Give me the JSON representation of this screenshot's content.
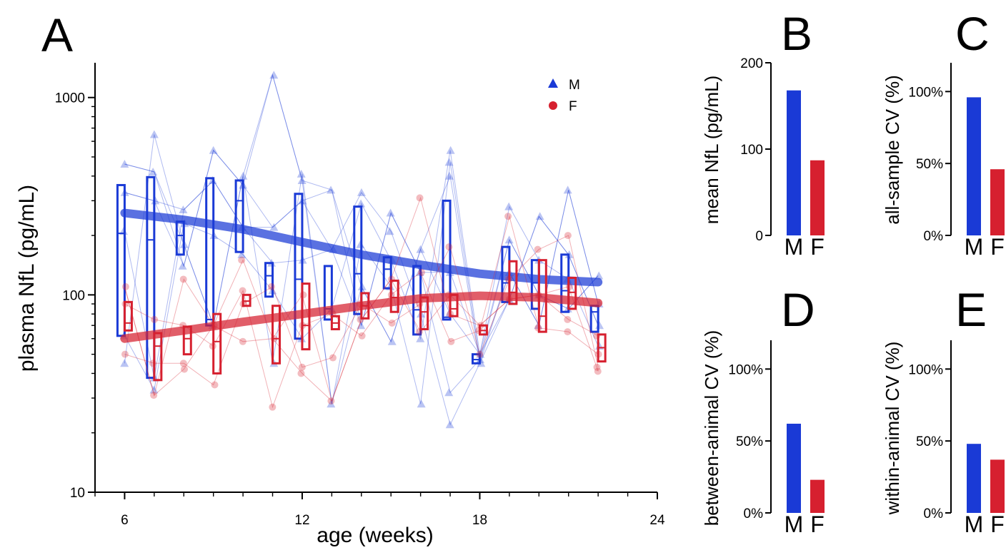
{
  "chart_data": [
    {
      "panel": "A",
      "type": "scatter",
      "xlabel": "age (weeks)",
      "ylabel": "plasma NfL (pg/mL)",
      "xlim": [
        5,
        24
      ],
      "ylim": [
        10,
        1500
      ],
      "yscale": "log",
      "xticks": [
        "6",
        "12",
        "18",
        "24"
      ],
      "yticks": [
        "10",
        "100",
        "1000"
      ],
      "legend": {
        "placement": "top-right",
        "entries": [
          {
            "label": "M",
            "color": "#1a3ad6",
            "marker": "triangle"
          },
          {
            "label": "F",
            "color": "#d6202f",
            "marker": "circle"
          }
        ]
      },
      "series": [
        {
          "name": "M",
          "color": "#1a3ad6",
          "trend": [
            [
              6,
              260
            ],
            [
              8,
              240
            ],
            [
              10,
              215
            ],
            [
              12,
              185
            ],
            [
              14,
              160
            ],
            [
              16,
              142
            ],
            [
              18,
              128
            ],
            [
              20,
              120
            ],
            [
              22,
              116
            ]
          ],
          "boxes": [
            {
              "x": 6,
              "low": 62,
              "median": 205,
              "high": 360
            },
            {
              "x": 7,
              "low": 38,
              "median": 190,
              "high": 395
            },
            {
              "x": 8,
              "low": 160,
              "median": 200,
              "high": 235
            },
            {
              "x": 9,
              "low": 70,
              "median": 75,
              "high": 390
            },
            {
              "x": 10,
              "low": 165,
              "median": 300,
              "high": 380
            },
            {
              "x": 11,
              "low": 98,
              "median": 125,
              "high": 145
            },
            {
              "x": 12,
              "low": 60,
              "median": 120,
              "high": 325
            },
            {
              "x": 13,
              "low": 75,
              "median": 85,
              "high": 140
            },
            {
              "x": 14,
              "low": 80,
              "median": 128,
              "high": 280
            },
            {
              "x": 15,
              "low": 108,
              "median": 135,
              "high": 155
            },
            {
              "x": 16,
              "low": 63,
              "median": 84,
              "high": 140
            },
            {
              "x": 17,
              "low": 75,
              "median": 77,
              "high": 300
            },
            {
              "x": 18,
              "low": 45,
              "median": 47,
              "high": 50
            },
            {
              "x": 19,
              "low": 92,
              "median": 115,
              "high": 175
            },
            {
              "x": 20,
              "low": 85,
              "median": 115,
              "high": 150
            },
            {
              "x": 21,
              "low": 82,
              "median": 105,
              "high": 160
            },
            {
              "x": 22,
              "low": 65,
              "median": 82,
              "high": 88
            }
          ],
          "points": [
            [
              6,
              460
            ],
            [
              6,
              330
            ],
            [
              6,
              210
            ],
            [
              6,
              62
            ],
            [
              6,
              45
            ],
            [
              7,
              650
            ],
            [
              7,
              420
            ],
            [
              7,
              300
            ],
            [
              7,
              38
            ],
            [
              7,
              33
            ],
            [
              8,
              270
            ],
            [
              8,
              230
            ],
            [
              8,
              180
            ],
            [
              8,
              140
            ],
            [
              9,
              540
            ],
            [
              9,
              380
            ],
            [
              9,
              200
            ],
            [
              9,
              70
            ],
            [
              10,
              400
            ],
            [
              10,
              360
            ],
            [
              10,
              220
            ],
            [
              10,
              160
            ],
            [
              11,
              1300
            ],
            [
              11,
              220
            ],
            [
              11,
              145
            ],
            [
              11,
              105
            ],
            [
              11,
              45
            ],
            [
              12,
              410
            ],
            [
              12,
              380
            ],
            [
              12,
              300
            ],
            [
              12,
              150
            ],
            [
              12,
              60
            ],
            [
              13,
              340
            ],
            [
              13,
              170
            ],
            [
              13,
              85
            ],
            [
              13,
              28
            ],
            [
              14,
              330
            ],
            [
              14,
              290
            ],
            [
              14,
              180
            ],
            [
              14,
              110
            ],
            [
              14,
              70
            ],
            [
              15,
              260
            ],
            [
              15,
              210
            ],
            [
              15,
              150
            ],
            [
              15,
              110
            ],
            [
              15,
              58
            ],
            [
              16,
              170
            ],
            [
              16,
              130
            ],
            [
              16,
              80
            ],
            [
              16,
              60
            ],
            [
              16,
              28
            ],
            [
              17,
              540
            ],
            [
              17,
              470
            ],
            [
              17,
              400
            ],
            [
              17,
              130
            ],
            [
              17,
              80
            ],
            [
              17,
              32
            ],
            [
              17,
              22
            ],
            [
              18,
              50
            ],
            [
              18,
              47
            ],
            [
              18,
              45
            ],
            [
              19,
              280
            ],
            [
              19,
              190
            ],
            [
              19,
              130
            ],
            [
              19,
              95
            ],
            [
              20,
              250
            ],
            [
              20,
              150
            ],
            [
              20,
              100
            ],
            [
              20,
              70
            ],
            [
              21,
              340
            ],
            [
              21,
              160
            ],
            [
              21,
              120
            ],
            [
              21,
              85
            ],
            [
              22,
              125
            ],
            [
              22,
              90
            ],
            [
              22,
              70
            ],
            [
              22,
              55
            ]
          ]
        },
        {
          "name": "F",
          "color": "#d6202f",
          "trend": [
            [
              6,
              60
            ],
            [
              8,
              66
            ],
            [
              10,
              73
            ],
            [
              12,
              80
            ],
            [
              14,
              88
            ],
            [
              16,
              96
            ],
            [
              18,
              99
            ],
            [
              20,
              97
            ],
            [
              22,
              91
            ]
          ],
          "boxes": [
            {
              "x": 6,
              "low": 66,
              "median": 72,
              "high": 92
            },
            {
              "x": 7,
              "low": 37,
              "median": 55,
              "high": 64
            },
            {
              "x": 8,
              "low": 50,
              "median": 60,
              "high": 69
            },
            {
              "x": 9,
              "low": 40,
              "median": 58,
              "high": 80
            },
            {
              "x": 10,
              "low": 88,
              "median": 93,
              "high": 100
            },
            {
              "x": 11,
              "low": 45,
              "median": 60,
              "high": 88
            },
            {
              "x": 12,
              "low": 53,
              "median": 70,
              "high": 114
            },
            {
              "x": 13,
              "low": 67,
              "median": 72,
              "high": 78
            },
            {
              "x": 14,
              "low": 76,
              "median": 88,
              "high": 102
            },
            {
              "x": 15,
              "low": 82,
              "median": 97,
              "high": 118
            },
            {
              "x": 16,
              "low": 67,
              "median": 82,
              "high": 97
            },
            {
              "x": 17,
              "low": 78,
              "median": 85,
              "high": 100
            },
            {
              "x": 18,
              "low": 63,
              "median": 66,
              "high": 70
            },
            {
              "x": 19,
              "low": 90,
              "median": 103,
              "high": 148
            },
            {
              "x": 20,
              "low": 65,
              "median": 78,
              "high": 150
            },
            {
              "x": 21,
              "low": 85,
              "median": 103,
              "high": 122
            },
            {
              "x": 22,
              "low": 46,
              "median": 54,
              "high": 63
            }
          ],
          "points": [
            [
              6,
              110
            ],
            [
              6,
              90
            ],
            [
              6,
              50
            ],
            [
              7,
              75
            ],
            [
              7,
              45
            ],
            [
              7,
              31
            ],
            [
              8,
              120
            ],
            [
              8,
              70
            ],
            [
              8,
              45
            ],
            [
              8,
              42
            ],
            [
              9,
              70
            ],
            [
              9,
              55
            ],
            [
              9,
              35
            ],
            [
              10,
              150
            ],
            [
              10,
              105
            ],
            [
              10,
              90
            ],
            [
              10,
              58
            ],
            [
              11,
              110
            ],
            [
              11,
              60
            ],
            [
              11,
              27
            ],
            [
              12,
              100
            ],
            [
              12,
              70
            ],
            [
              12,
              43
            ],
            [
              12,
              40
            ],
            [
              13,
              80
            ],
            [
              13,
              48
            ],
            [
              13,
              29
            ],
            [
              14,
              90
            ],
            [
              14,
              75
            ],
            [
              14,
              62
            ],
            [
              15,
              120
            ],
            [
              15,
              100
            ],
            [
              15,
              72
            ],
            [
              16,
              310
            ],
            [
              16,
              130
            ],
            [
              16,
              90
            ],
            [
              16,
              65
            ],
            [
              17,
              175
            ],
            [
              17,
              100
            ],
            [
              17,
              80
            ],
            [
              17,
              58
            ],
            [
              18,
              70
            ],
            [
              18,
              66
            ],
            [
              18,
              50
            ],
            [
              19,
              250
            ],
            [
              19,
              120
            ],
            [
              19,
              95
            ],
            [
              20,
              170
            ],
            [
              20,
              100
            ],
            [
              20,
              68
            ],
            [
              21,
              200
            ],
            [
              21,
              110
            ],
            [
              21,
              75
            ],
            [
              21,
              65
            ],
            [
              22,
              62
            ],
            [
              22,
              50
            ],
            [
              22,
              43
            ],
            [
              22,
              41
            ]
          ]
        }
      ]
    },
    {
      "panel": "B",
      "type": "bar",
      "ylabel": "mean NfL (pg/mL)",
      "categories": [
        "M",
        "F"
      ],
      "values": [
        168,
        87
      ],
      "colors": [
        "#1a3ad6",
        "#d6202f"
      ],
      "ylim": [
        0,
        200
      ],
      "yticks": [
        "0",
        "100",
        "200"
      ]
    },
    {
      "panel": "C",
      "type": "bar",
      "ylabel": "all-sample CV (%)",
      "categories": [
        "M",
        "F"
      ],
      "values": [
        96,
        46
      ],
      "colors": [
        "#1a3ad6",
        "#d6202f"
      ],
      "ylim": [
        0,
        120
      ],
      "yticks": [
        "0%",
        "50%",
        "100%"
      ]
    },
    {
      "panel": "D",
      "type": "bar",
      "ylabel": "between-animal CV (%)",
      "categories": [
        "M",
        "F"
      ],
      "values": [
        62,
        23
      ],
      "colors": [
        "#1a3ad6",
        "#d6202f"
      ],
      "ylim": [
        0,
        120
      ],
      "yticks": [
        "0%",
        "50%",
        "100%"
      ]
    },
    {
      "panel": "E",
      "type": "bar",
      "ylabel": "within-animal CV (%)",
      "categories": [
        "M",
        "F"
      ],
      "values": [
        48,
        37
      ],
      "colors": [
        "#1a3ad6",
        "#d6202f"
      ],
      "ylim": [
        0,
        120
      ],
      "yticks": [
        "0%",
        "50%",
        "100%"
      ]
    }
  ]
}
